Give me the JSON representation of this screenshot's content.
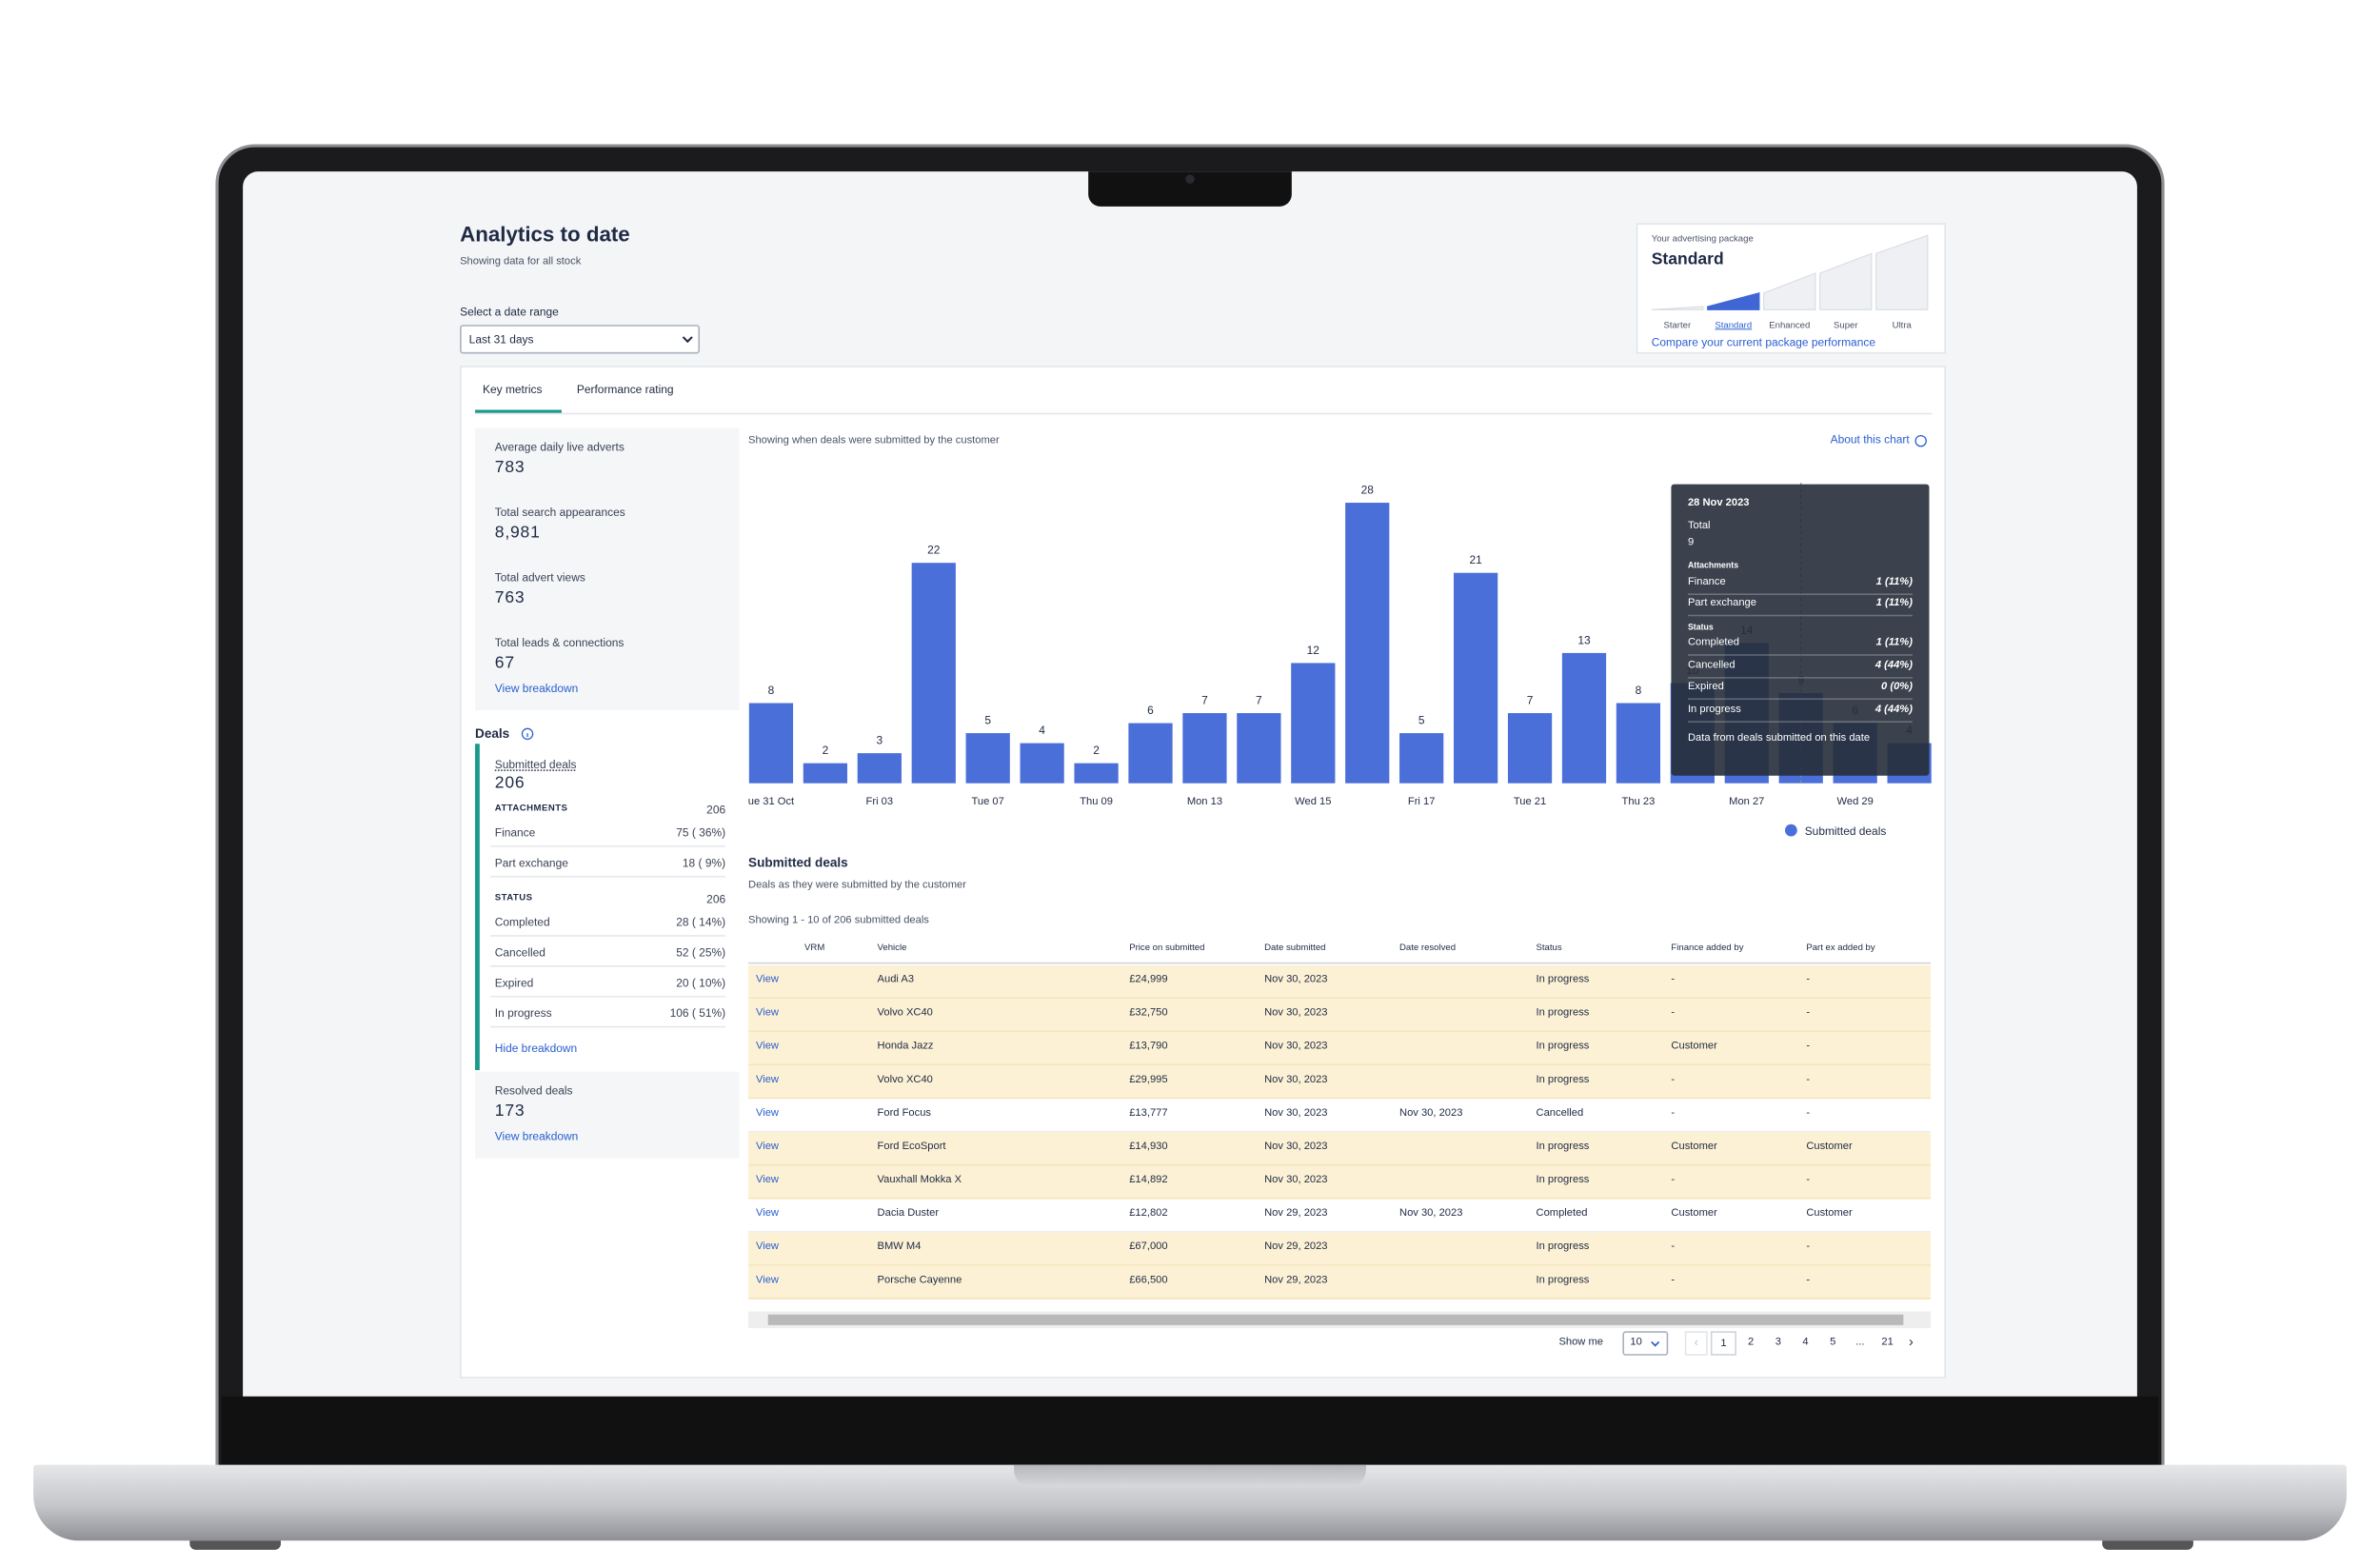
{
  "header": {
    "title": "Analytics to date",
    "subtitle": "Showing data for all stock",
    "date_label": "Select a date range",
    "date_value": "Last 31 days"
  },
  "package": {
    "caption": "Your advertising package",
    "title": "Standard",
    "levels": [
      "Starter",
      "Standard",
      "Enhanced",
      "Super",
      "Ultra"
    ],
    "link": "Compare your current package performance"
  },
  "tabs": [
    "Key metrics",
    "Performance rating"
  ],
  "metrics": [
    {
      "label": "Average daily live adverts",
      "value": "783"
    },
    {
      "label": "Total search appearances",
      "value": "8,981"
    },
    {
      "label": "Total advert views",
      "value": "763"
    },
    {
      "label": "Total leads & connections",
      "value": "67"
    }
  ],
  "metrics_link": "View breakdown",
  "deals": {
    "title": "Deals",
    "submitted_label": "Submitted deals",
    "submitted_value": "206",
    "attachments_label": "ATTACHMENTS",
    "attachments_total": "206",
    "attachments": [
      {
        "label": "Finance",
        "value": "75 ( 36%)"
      },
      {
        "label": "Part exchange",
        "value": "18 ( 9%)"
      }
    ],
    "status_label": "STATUS",
    "status_total": "206",
    "status": [
      {
        "label": "Completed",
        "value": "28 ( 14%)"
      },
      {
        "label": "Cancelled",
        "value": "52 ( 25%)"
      },
      {
        "label": "Expired",
        "value": "20 ( 10%)"
      },
      {
        "label": "In progress",
        "value": "106 ( 51%)"
      }
    ],
    "hide_link": "Hide breakdown",
    "resolved_label": "Resolved deals",
    "resolved_value": "173",
    "resolved_link": "View breakdown"
  },
  "chart_data": {
    "type": "bar",
    "subtitle": "Showing when deals were submitted by the customer",
    "about": "About this chart",
    "categories": [
      "ue 31 Oct",
      null,
      "Fri 03",
      null,
      "Tue 07",
      null,
      "Thu 09",
      null,
      "Mon 13",
      null,
      "Wed 15",
      null,
      "Fri 17",
      null,
      "Tue 21",
      null,
      "Thu 23",
      null,
      "Mon 27",
      null,
      "Wed 29",
      null
    ],
    "series": [
      {
        "name": "Submitted deals",
        "color": "#4a6fd8",
        "values": [
          8,
          2,
          3,
          22,
          5,
          4,
          2,
          6,
          7,
          7,
          12,
          28,
          5,
          21,
          7,
          13,
          8,
          10,
          14,
          9,
          6,
          4
        ]
      }
    ],
    "ylim": [
      0,
      30
    ],
    "legend": "bottom-right",
    "tooltip": {
      "date": "28 Nov 2023",
      "total_label": "Total",
      "total": 9,
      "attachments_label": "Attachments",
      "attachments": [
        {
          "label": "Finance",
          "value": "1 (11%)"
        },
        {
          "label": "Part exchange",
          "value": "1 (11%)"
        }
      ],
      "status_label": "Status",
      "status": [
        {
          "label": "Completed",
          "value": "1 (11%)"
        },
        {
          "label": "Cancelled",
          "value": "4 (44%)"
        },
        {
          "label": "Expired",
          "value": "0 (0%)"
        },
        {
          "label": "In progress",
          "value": "4 (44%)"
        }
      ],
      "note": "Data from deals submitted on this date"
    }
  },
  "table": {
    "title": "Submitted deals",
    "subtitle": "Deals as they were submitted by the customer",
    "showing": "Showing 1 - 10 of 206 submitted deals",
    "columns": [
      "VRM",
      "Vehicle",
      "Price on submitted",
      "Date submitted",
      "Date resolved",
      "Status",
      "Finance added by",
      "Part ex added by"
    ],
    "rows": [
      {
        "view": "View",
        "vehicle": "Audi A3",
        "price": "£24,999",
        "submitted": "Nov 30, 2023",
        "status": "In progress",
        "finance": "-",
        "partex": "-"
      },
      {
        "view": "View",
        "vehicle": "Volvo XC40",
        "price": "£32,750",
        "submitted": "Nov 30, 2023",
        "status": "In progress",
        "finance": "-",
        "partex": "-"
      },
      {
        "view": "View",
        "vehicle": "Honda Jazz",
        "price": "£13,790",
        "submitted": "Nov 30, 2023",
        "status": "In progress",
        "finance": "Customer",
        "partex": "-"
      },
      {
        "view": "View",
        "vehicle": "Volvo XC40",
        "price": "£29,995",
        "submitted": "Nov 30, 2023",
        "status": "In progress",
        "finance": "-",
        "partex": "-"
      },
      {
        "view": "View",
        "vehicle": "Ford Focus",
        "price": "£13,777",
        "submitted": "Nov 30, 2023",
        "resolved": "Nov 30, 2023",
        "status": "Cancelled",
        "finance": "-",
        "partex": "-"
      },
      {
        "view": "View",
        "vehicle": "Ford EcoSport",
        "price": "£14,930",
        "submitted": "Nov 30, 2023",
        "status": "In progress",
        "finance": "Customer",
        "partex": "Customer"
      },
      {
        "view": "View",
        "vehicle": "Vauxhall Mokka X",
        "price": "£14,892",
        "submitted": "Nov 30, 2023",
        "status": "In progress",
        "finance": "-",
        "partex": "-"
      },
      {
        "view": "View",
        "vehicle": "Dacia Duster",
        "price": "£12,802",
        "submitted": "Nov 29, 2023",
        "resolved": "Nov 30, 2023",
        "status": "Completed",
        "finance": "Customer",
        "partex": "Customer"
      },
      {
        "view": "View",
        "vehicle": "BMW M4",
        "price": "£67,000",
        "submitted": "Nov 29, 2023",
        "status": "In progress",
        "finance": "-",
        "partex": "-"
      },
      {
        "view": "View",
        "vehicle": "Porsche Cayenne",
        "price": "£66,500",
        "submitted": "Nov 29, 2023",
        "status": "In progress",
        "finance": "-",
        "partex": "-"
      }
    ]
  },
  "pagination": {
    "show_label": "Show me",
    "page_size": 10,
    "pages": [
      1,
      2,
      3,
      4,
      5,
      "...",
      21
    ]
  }
}
